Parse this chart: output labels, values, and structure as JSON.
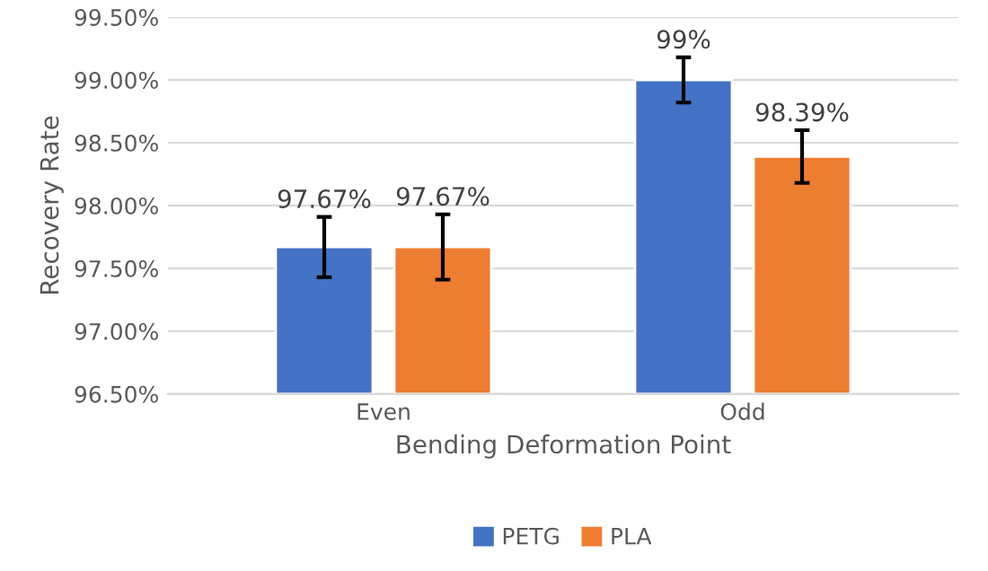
{
  "chart_data": {
    "type": "bar",
    "xlabel": "Bending Deformation Point",
    "ylabel": "Recovery Rate",
    "categories": [
      "Even",
      "Odd"
    ],
    "series": [
      {
        "name": "PETG",
        "color": "#4472c4",
        "values": [
          97.67,
          99
        ],
        "errors": [
          0.24,
          0.18
        ],
        "value_labels": [
          "97.67%",
          "99%"
        ]
      },
      {
        "name": "PLA",
        "color": "#ed7d31",
        "values": [
          97.67,
          98.39
        ],
        "errors": [
          0.26,
          0.21
        ],
        "value_labels": [
          "97.67%",
          "98.39%"
        ]
      }
    ],
    "ylim": [
      96.5,
      99.5
    ],
    "yticks": [
      {
        "value": 96.5,
        "label": "96.50%"
      },
      {
        "value": 97.0,
        "label": "97.00%"
      },
      {
        "value": 97.5,
        "label": "97.50%"
      },
      {
        "value": 98.0,
        "label": "98.00%"
      },
      {
        "value": 98.5,
        "label": "98.50%"
      },
      {
        "value": 99.0,
        "label": "99.00%"
      },
      {
        "value": 99.5,
        "label": "99.50%"
      }
    ],
    "grid": "y",
    "legend": "bottom"
  }
}
